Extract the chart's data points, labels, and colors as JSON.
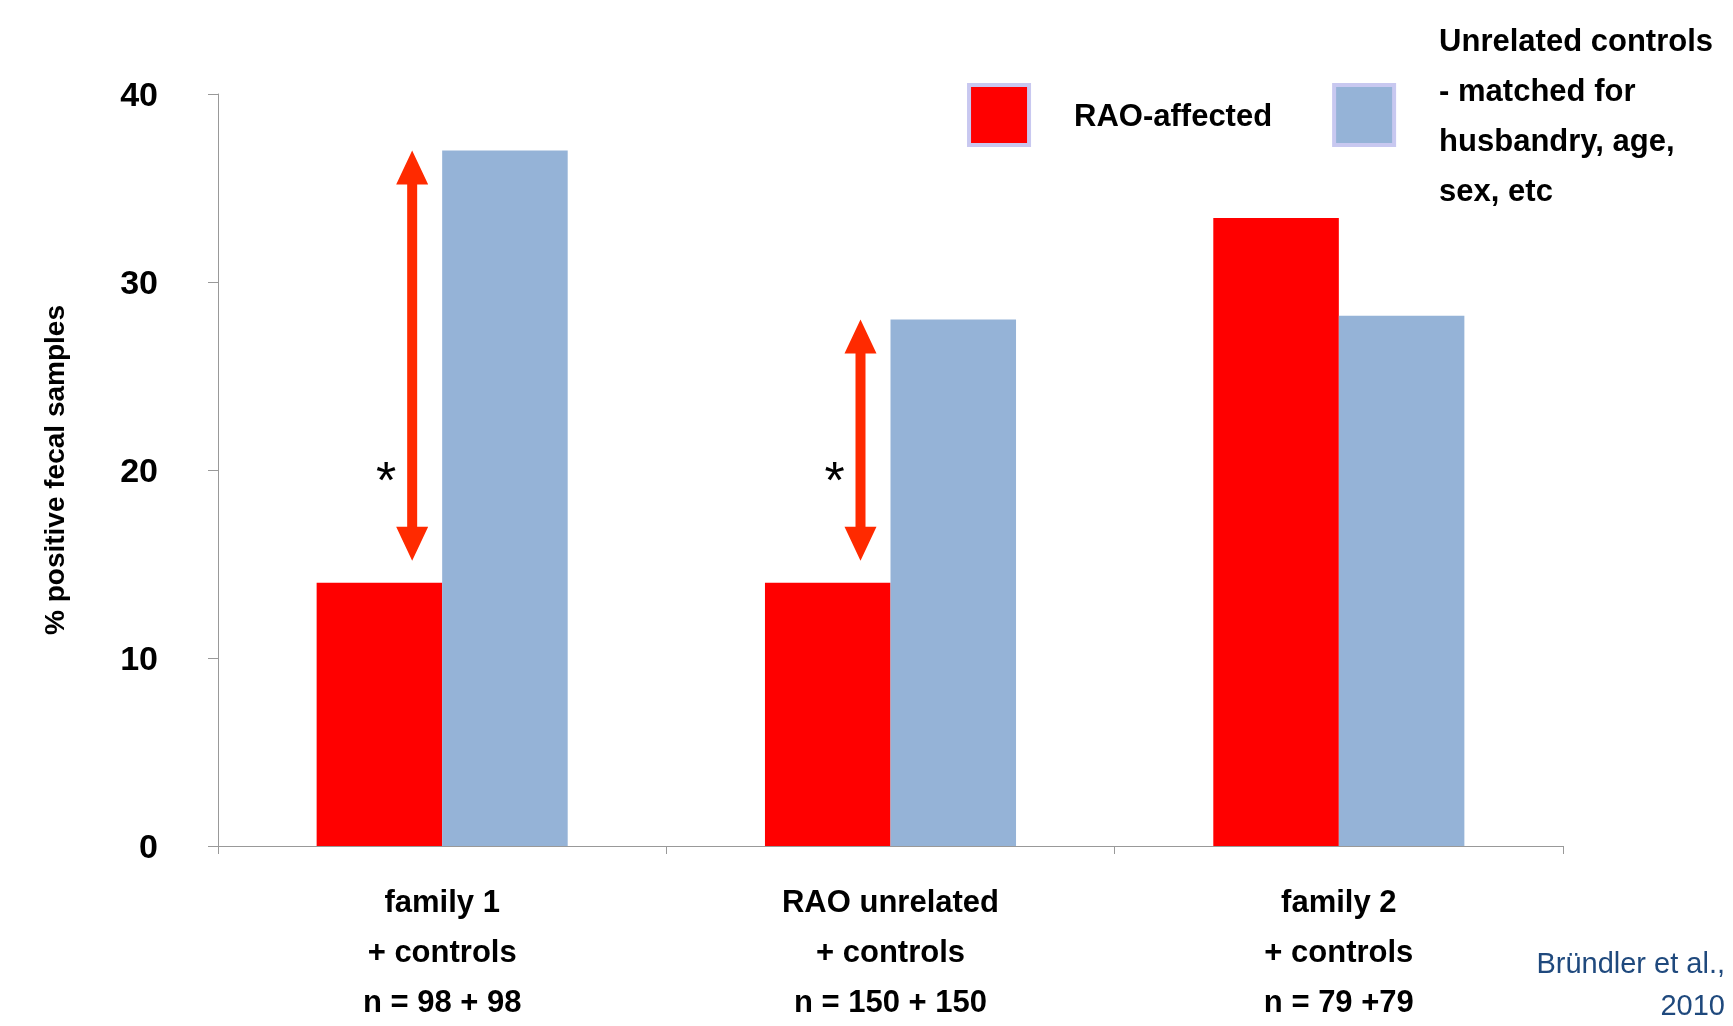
{
  "chart_data": {
    "type": "bar",
    "ylabel": "% positive fecal samples",
    "categories": [
      "family 1\n+ controls\nn = 98 + 98",
      "RAO unrelated\n+ controls\nn = 150 + 150",
      "family 2\n+ controls\nn = 79 +79"
    ],
    "series": [
      {
        "name": "RAO-affected",
        "color": "#ff0000",
        "values": [
          14,
          14,
          33.4
        ]
      },
      {
        "name": "Unrelated controls\n- matched for\nhusbandry, age,\nsex, etc",
        "color": "#95b3d7",
        "values": [
          37,
          28,
          28.2
        ]
      }
    ],
    "ylim": [
      0,
      40
    ],
    "yticks": [
      0,
      10,
      20,
      30,
      40
    ],
    "grid": false,
    "legend": "top right",
    "annotations": [
      {
        "text": "*",
        "x": "family 1\n+ controls\nn = 98 + 98",
        "y": 20
      },
      {
        "text": "*",
        "x": "RAO unrelated\n+ controls\nn = 150 + 150",
        "y": 20
      },
      "Bründler et al.,\n2010"
    ]
  }
}
